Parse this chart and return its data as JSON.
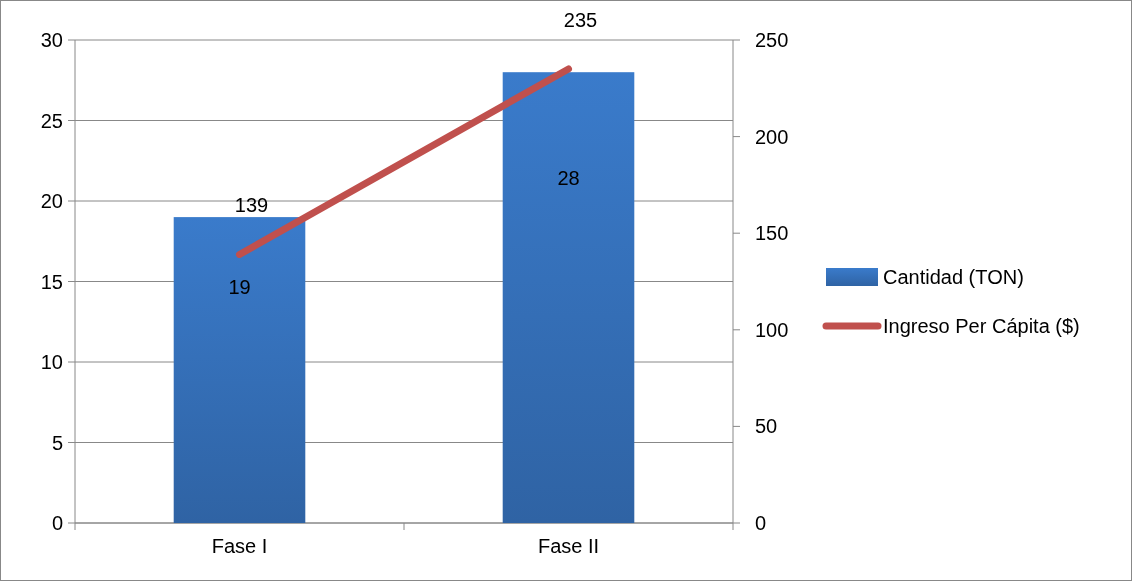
{
  "chart_data": {
    "type": "bar",
    "categories": [
      "Fase I",
      "Fase II"
    ],
    "series": [
      {
        "name": "Cantidad (TON)",
        "color": "#3a7bcb",
        "values": [
          19,
          28
        ]
      },
      {
        "name": "Ingreso Per Cápita ($)",
        "type": "line",
        "axis": "y2",
        "color": "#c0504d",
        "values": [
          139,
          235
        ]
      }
    ],
    "ylim": [
      0,
      30
    ],
    "yticks": [
      0,
      5,
      10,
      15,
      20,
      25,
      30
    ],
    "y2lim": [
      0,
      250
    ],
    "y2ticks": [
      0,
      50,
      100,
      150,
      200,
      250
    ],
    "grid": "y",
    "legend": "right",
    "data_labels": true,
    "marker": "none",
    "line_style": "solid"
  }
}
